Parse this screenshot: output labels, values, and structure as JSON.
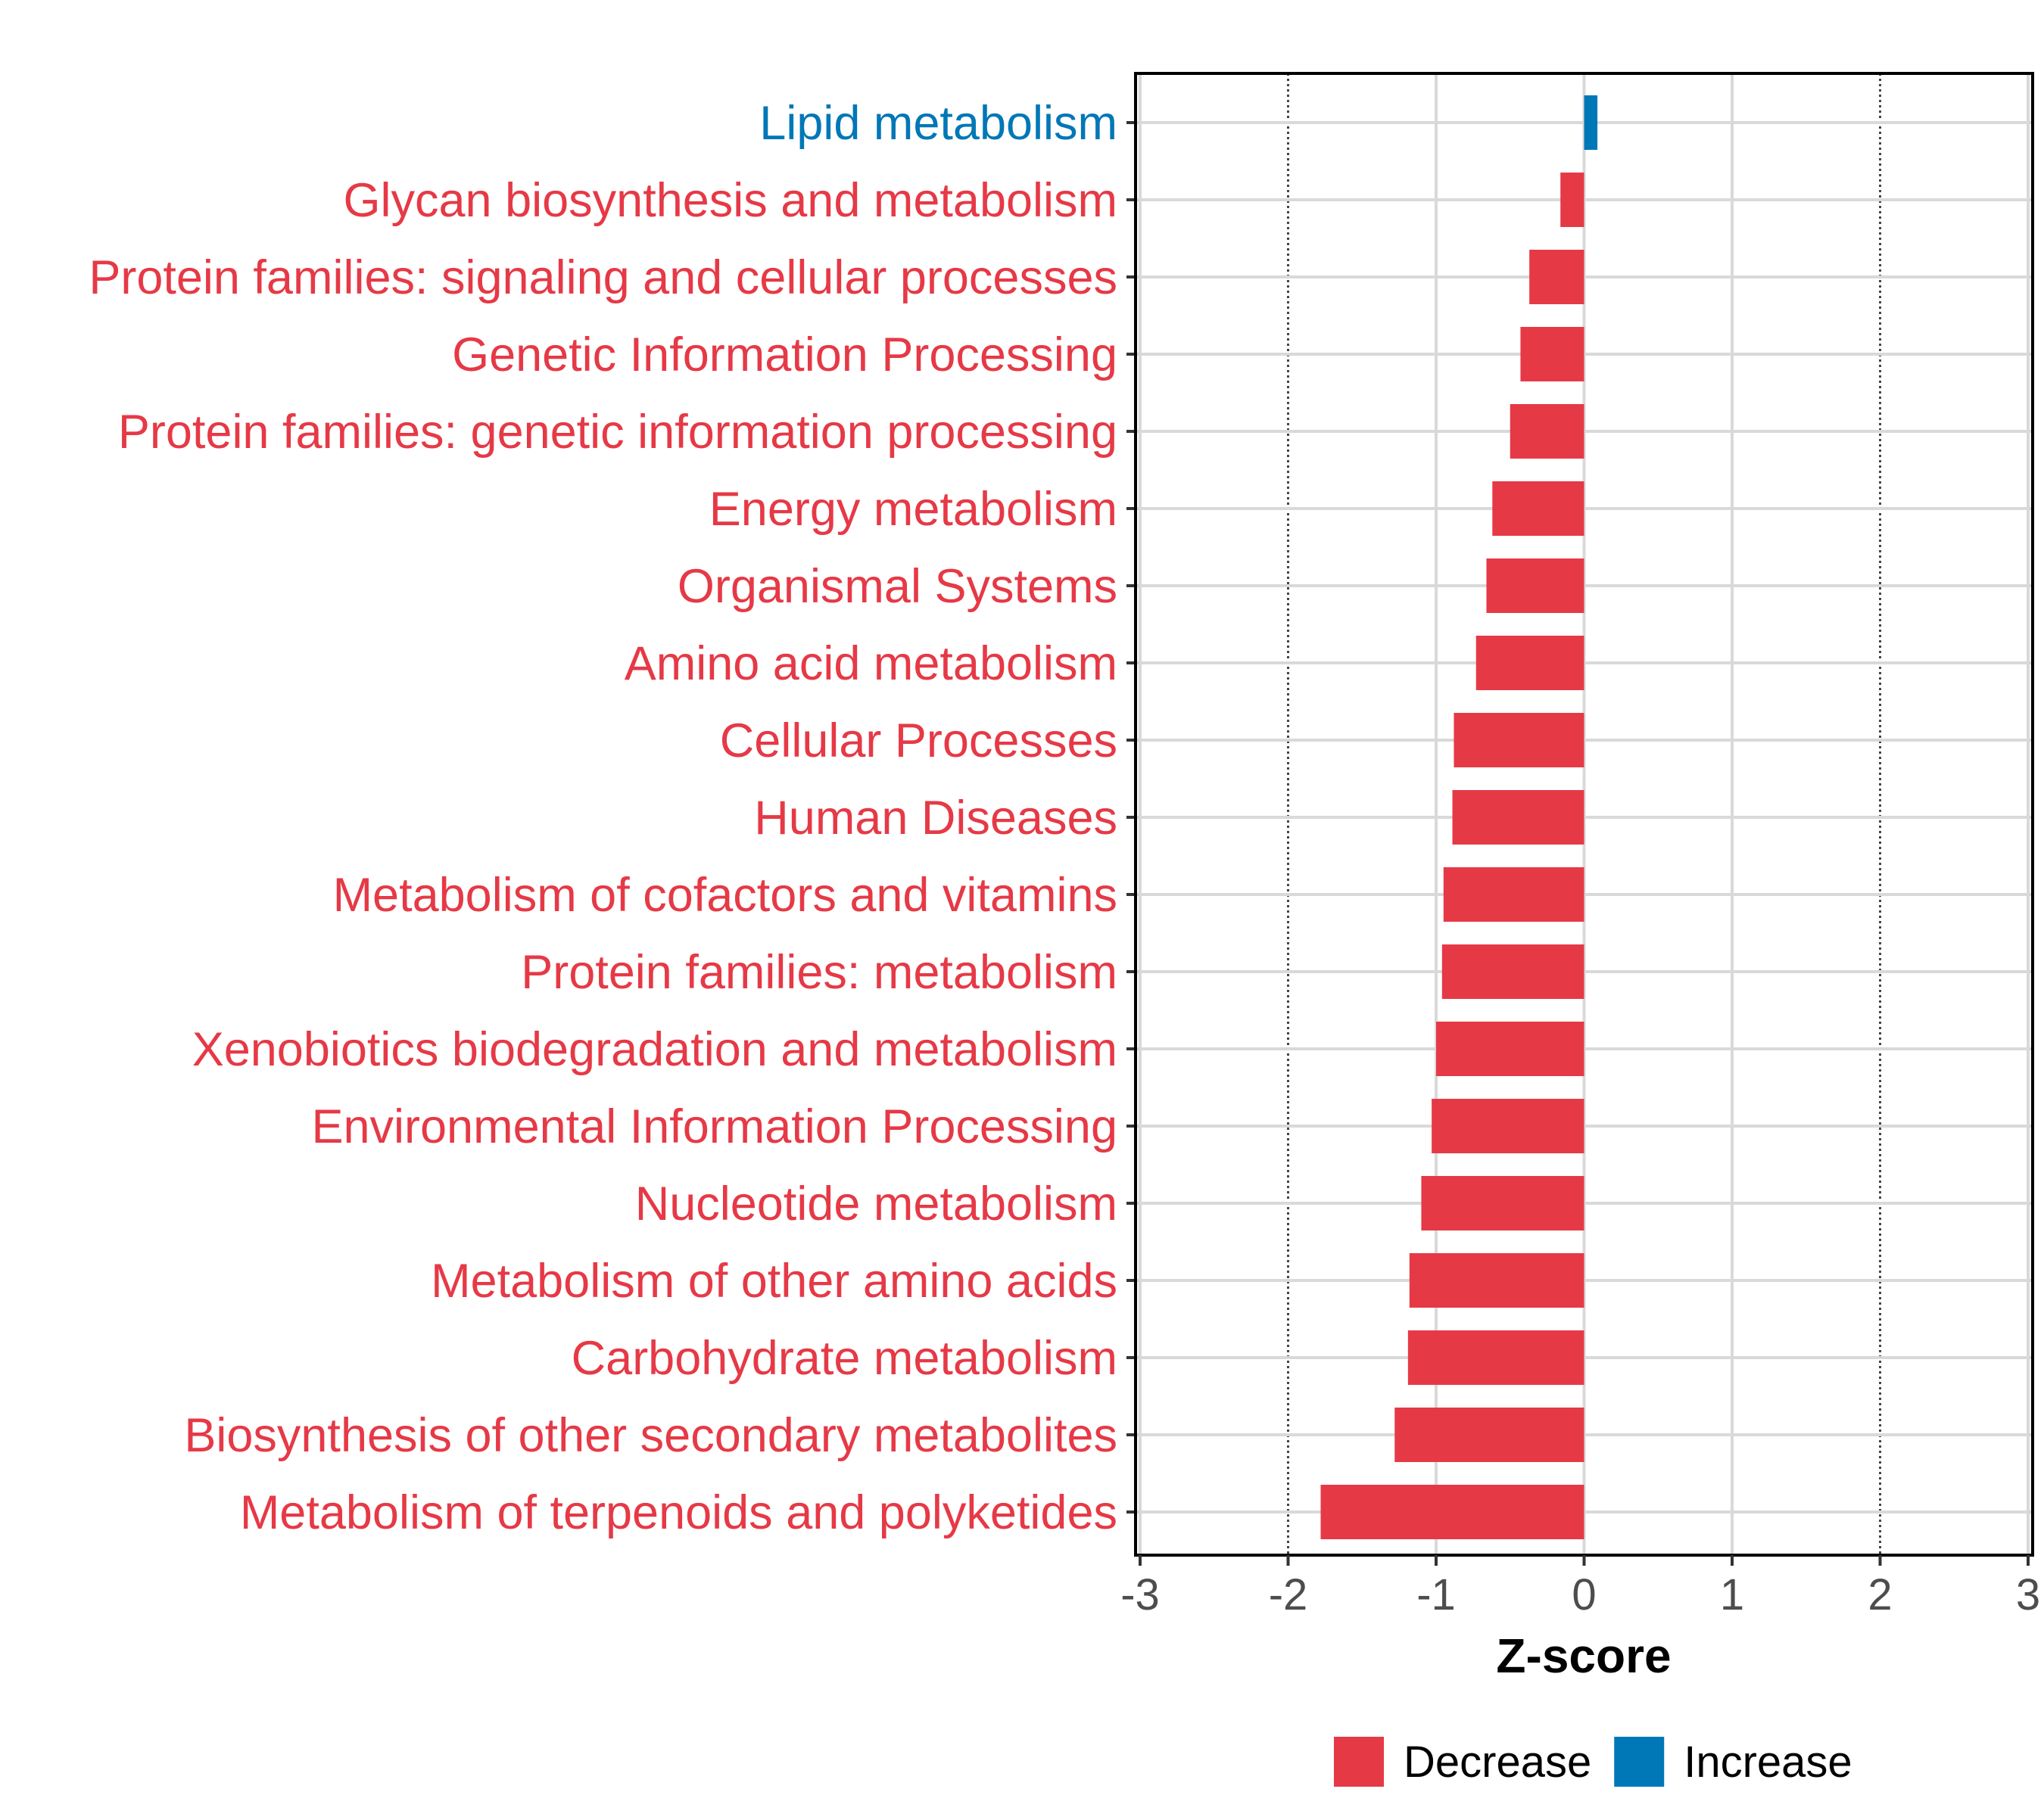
{
  "chart_data": {
    "type": "bar",
    "orientation": "horizontal",
    "xlabel": "Z-score",
    "xlim": [
      -3,
      3
    ],
    "xticks": [
      "-3",
      "-2",
      "-1",
      "0",
      "1",
      "2",
      "3"
    ],
    "reference_lines": [
      -2,
      2
    ],
    "grid": true,
    "legend_position": "bottom",
    "legend": [
      {
        "label": "Decrease",
        "color": "#E63946"
      },
      {
        "label": "Increase",
        "color": "#0077B6"
      }
    ],
    "categories": [
      "Lipid metabolism",
      "Glycan biosynthesis and metabolism",
      "Protein families: signaling and cellular processes",
      "Genetic Information Processing",
      "Protein families: genetic information processing",
      "Energy metabolism",
      "Organismal Systems",
      "Amino acid metabolism",
      "Cellular Processes",
      "Human Diseases",
      "Metabolism of cofactors and vitamins",
      "Protein families: metabolism",
      "Xenobiotics biodegradation and metabolism",
      "Environmental Information Processing",
      "Nucleotide metabolism",
      "Metabolism of other amino acids",
      "Carbohydrate metabolism",
      "Biosynthesis of other secondary metabolites",
      "Metabolism of terpenoids and polyketides"
    ],
    "values": [
      0.09,
      -0.16,
      -0.37,
      -0.43,
      -0.5,
      -0.62,
      -0.66,
      -0.73,
      -0.88,
      -0.89,
      -0.95,
      -0.96,
      -1.0,
      -1.03,
      -1.1,
      -1.18,
      -1.19,
      -1.28,
      -1.78
    ],
    "direction": [
      "Increase",
      "Decrease",
      "Decrease",
      "Decrease",
      "Decrease",
      "Decrease",
      "Decrease",
      "Decrease",
      "Decrease",
      "Decrease",
      "Decrease",
      "Decrease",
      "Decrease",
      "Decrease",
      "Decrease",
      "Decrease",
      "Decrease",
      "Decrease",
      "Decrease"
    ]
  }
}
